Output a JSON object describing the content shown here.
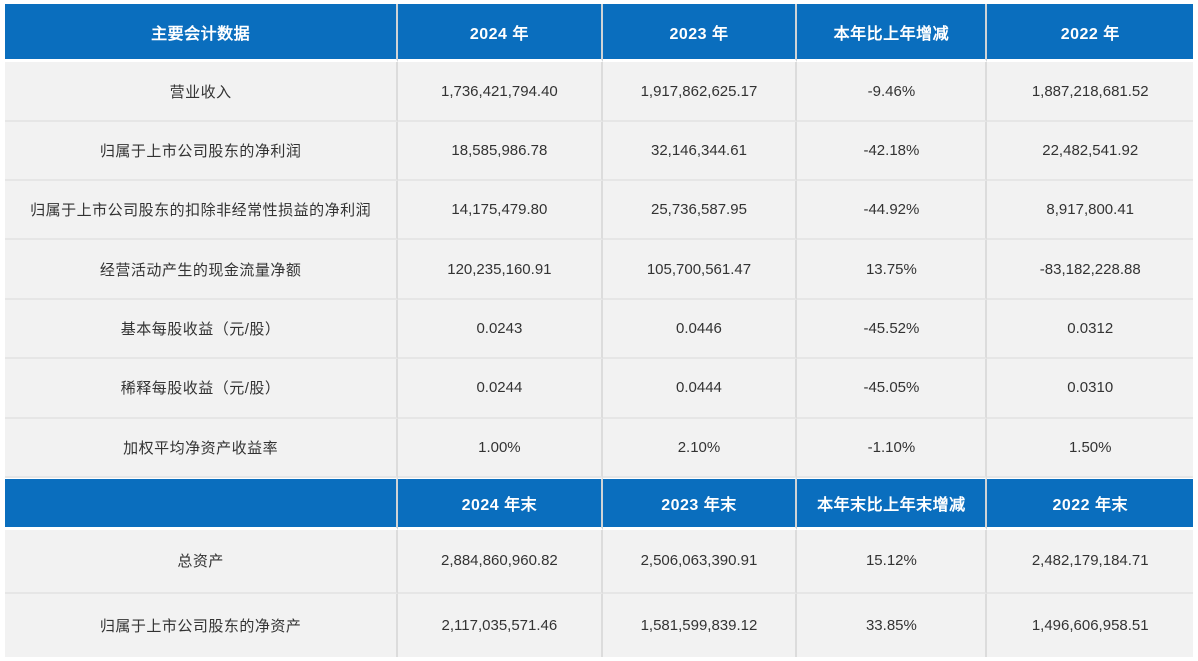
{
  "theme": {
    "header_bg": "#0a6ebe",
    "header_text": "#ffffff",
    "row_bg": "#f2f2f2",
    "body_text": "#333333",
    "grid_line": "#dcdcdc"
  },
  "annual_section": {
    "headers": [
      "主要会计数据",
      "2024 年",
      "2023 年",
      "本年比上年增减",
      "2022 年"
    ],
    "rows": [
      [
        "营业收入",
        "1,736,421,794.40",
        "1,917,862,625.17",
        "-9.46%",
        "1,887,218,681.52"
      ],
      [
        "归属于上市公司股东的净利润",
        "18,585,986.78",
        "32,146,344.61",
        "-42.18%",
        "22,482,541.92"
      ],
      [
        "归属于上市公司股东的扣除非经常性损益的净利润",
        "14,175,479.80",
        "25,736,587.95",
        "-44.92%",
        "8,917,800.41"
      ],
      [
        "经营活动产生的现金流量净额",
        "120,235,160.91",
        "105,700,561.47",
        "13.75%",
        "-83,182,228.88"
      ],
      [
        "基本每股收益（元/股）",
        "0.0243",
        "0.0446",
        "-45.52%",
        "0.0312"
      ],
      [
        "稀释每股收益（元/股）",
        "0.0244",
        "0.0444",
        "-45.05%",
        "0.0310"
      ],
      [
        "加权平均净资产收益率",
        "1.00%",
        "2.10%",
        "-1.10%",
        "1.50%"
      ]
    ]
  },
  "yearend_section": {
    "headers": [
      "",
      "2024 年末",
      "2023 年末",
      "本年末比上年末增减",
      "2022 年末"
    ],
    "rows": [
      [
        "总资产",
        "2,884,860,960.82",
        "2,506,063,390.91",
        "15.12%",
        "2,482,179,184.71"
      ],
      [
        "归属于上市公司股东的净资产",
        "2,117,035,571.46",
        "1,581,599,839.12",
        "33.85%",
        "1,496,606,958.51"
      ]
    ]
  }
}
